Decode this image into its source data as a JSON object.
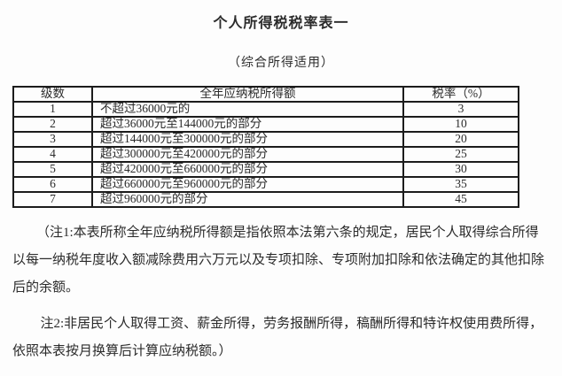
{
  "document": {
    "title": "个人所得税税率表一",
    "subtitle": "（综合所得适用）"
  },
  "table": {
    "headers": [
      "级数",
      "全年应纳税所得额",
      "税率（%）"
    ],
    "rows": [
      [
        "1",
        "不超过36000元的",
        "3"
      ],
      [
        "2",
        "超过36000元至144000元的部分",
        "10"
      ],
      [
        "3",
        "超过144000元至300000元的部分",
        "20"
      ],
      [
        "4",
        "超过300000元至420000元的部分",
        "25"
      ],
      [
        "5",
        "超过420000元至660000元的部分",
        "30"
      ],
      [
        "6",
        "超过660000元至960000元的部分",
        "35"
      ],
      [
        "7",
        "超过960000元的部分",
        "45"
      ]
    ]
  },
  "notes": {
    "note1": "（注1:本表所称全年应纳税所得额是指依照本法第六条的规定，居民个人取得综合所得以每一纳税年度收入额减除费用六万元以及专项扣除、专项附加扣除和依法确定的其他扣除后的余额。",
    "note2": "注2:非居民个人取得工资、薪金所得，劳务报酬所得，稿酬所得和特许权使用费所得，依照本表按月换算后计算应纳税额。）"
  },
  "colors": {
    "background": "#fdfdfd",
    "text": "#2b2b2b",
    "table_border": "#1c1c1c"
  }
}
